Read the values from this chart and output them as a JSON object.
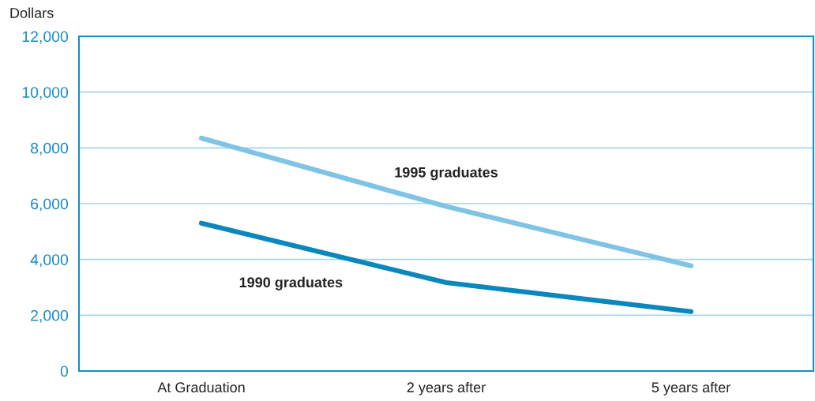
{
  "chart_data": {
    "type": "line",
    "ylabel": "Dollars",
    "categories": [
      "At Graduation",
      "2 years after",
      "5 years after"
    ],
    "series": [
      {
        "name": "1995 graduates",
        "color": "#7fc4e4",
        "values": [
          8350,
          5900,
          3770
        ]
      },
      {
        "name": "1990 graduates",
        "color": "#0a87bd",
        "values": [
          5300,
          3170,
          2130
        ]
      }
    ],
    "ylim": [
      0,
      12000
    ],
    "yticks": [
      0,
      {
        "value": 2000,
        "label": "2,000"
      },
      {
        "value": 4000,
        "label": "4,000"
      },
      {
        "value": 6000,
        "label": "6,000"
      },
      {
        "value": 8000,
        "label": "8,000"
      },
      {
        "value": 10000,
        "label": "10,000"
      },
      {
        "value": 12000,
        "label": "12,000"
      }
    ],
    "grid": "y",
    "legend": false,
    "marker": "none",
    "line_style": "solid"
  }
}
